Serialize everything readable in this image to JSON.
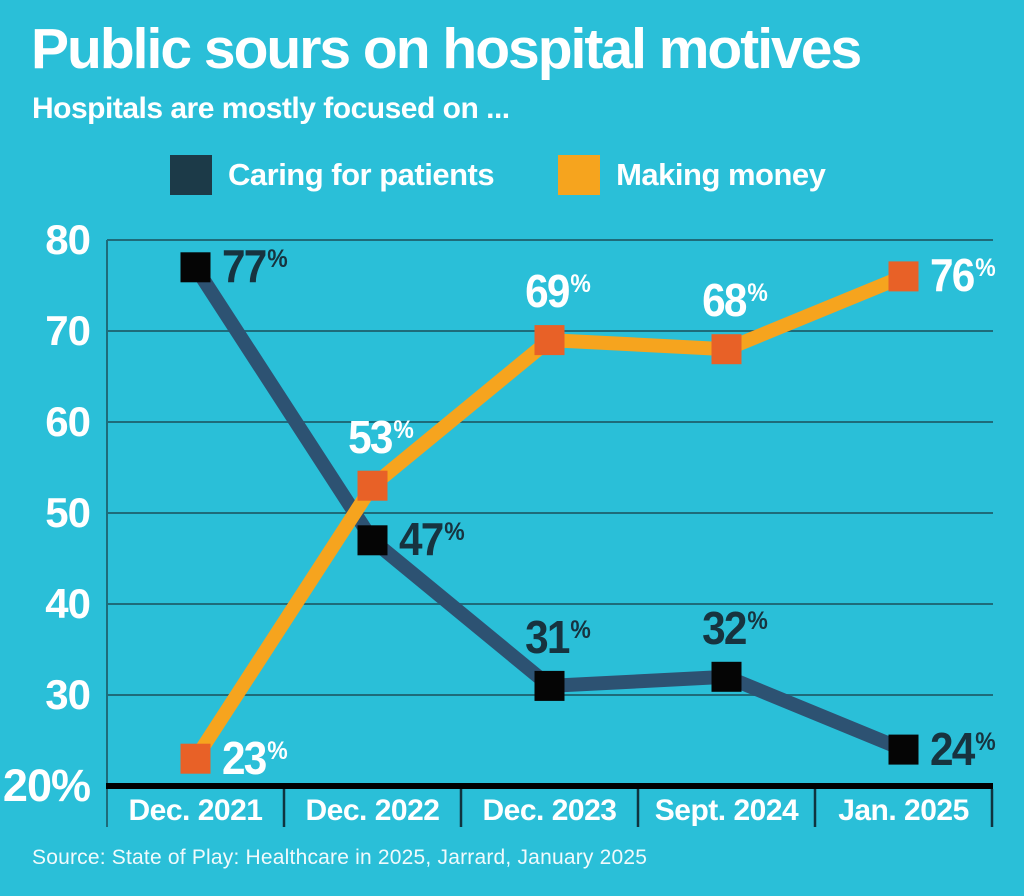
{
  "title": "Public sours on hospital motives",
  "subtitle": "Hospitals are mostly focused on ...",
  "source": "Source: State of Play: Healthcare in 2025, Jarrard, January 2025",
  "colors": {
    "background": "#2ABFD8",
    "text": "#FFFFFF",
    "gridline": "#1E6B7A",
    "separator": "#0F3440",
    "axis_line": "#000000"
  },
  "legend": {
    "items": [
      {
        "label": "Caring for patients",
        "swatch_color": "#1C3A48"
      },
      {
        "label": "Making money",
        "swatch_color": "#F6A41E"
      }
    ]
  },
  "chart_data": {
    "type": "line",
    "categories": [
      "Dec. 2021",
      "Dec. 2022",
      "Dec. 2023",
      "Sept. 2024",
      "Jan. 2025"
    ],
    "series": [
      {
        "name": "Caring for patients",
        "values": [
          77,
          47,
          31,
          32,
          24
        ],
        "line_color": "#2D5272",
        "marker_color": "#050505",
        "label_color": "#17333F",
        "label_placements": [
          "right",
          "right",
          "above",
          "above",
          "right"
        ]
      },
      {
        "name": "Making money",
        "values": [
          23,
          53,
          69,
          68,
          76
        ],
        "line_color": "#F6A41E",
        "marker_color": "#E86127",
        "label_color": "#FFFFFF",
        "label_placements": [
          "right",
          "above",
          "above",
          "above",
          "right"
        ]
      }
    ],
    "value_suffix": "%",
    "ylim": [
      20,
      80
    ],
    "yticks": [
      {
        "value": 80,
        "label": "80"
      },
      {
        "value": 70,
        "label": "70"
      },
      {
        "value": 60,
        "label": "60"
      },
      {
        "value": 50,
        "label": "50"
      },
      {
        "value": 40,
        "label": "40"
      },
      {
        "value": 30,
        "label": "30"
      },
      {
        "value": 20,
        "label": "20%"
      }
    ],
    "grid": true,
    "legend_position": "top"
  }
}
